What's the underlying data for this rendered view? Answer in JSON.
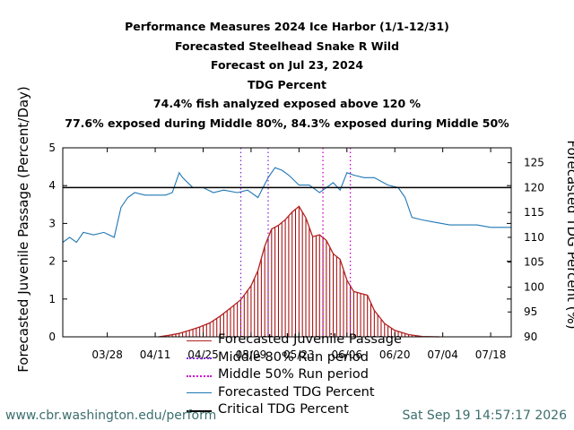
{
  "chart_data": {
    "type": "line",
    "title_lines": [
      "Performance Measures 2024 Ice Harbor (1/1-12/31)",
      "Forecasted Steelhead Snake R Wild",
      "Forecast on Jul 23, 2024",
      "TDG Percent",
      "74.4% fish analyzed exposed above 120 %",
      "77.6% exposed during Middle 80%, 84.3% exposed during Middle 50%"
    ],
    "ylabel_left": "Forecasted Juvenile Passage (Percent/Day)",
    "ylabel_right": "Forecasted TDG Percent (%)",
    "ylim_left": [
      0,
      5
    ],
    "ylim_right": [
      90,
      128
    ],
    "yticks_left": [
      "0",
      "1",
      "2",
      "3",
      "4",
      "5"
    ],
    "yticks_right": [
      "90",
      "95",
      "100",
      "105",
      "110",
      "115",
      "120",
      "125"
    ],
    "x_start": "03/15",
    "x_end": "07/24",
    "x_ticks": [
      "03/28",
      "04/11",
      "04/25",
      "05/09",
      "05/23",
      "06/06",
      "06/20",
      "07/04",
      "07/18"
    ],
    "critical_tdg": 120,
    "middle80_dates": [
      "05/06",
      "05/14"
    ],
    "middle50_dates": [
      "05/30",
      "06/07"
    ],
    "passage": {
      "x": [
        "04/12",
        "04/15",
        "04/18",
        "04/21",
        "04/24",
        "04/27",
        "04/30",
        "05/03",
        "05/06",
        "05/09",
        "05/11",
        "05/13",
        "05/15",
        "05/17",
        "05/19",
        "05/21",
        "05/23",
        "05/25",
        "05/27",
        "05/29",
        "05/31",
        "06/02",
        "06/04",
        "06/06",
        "06/08",
        "06/10",
        "06/12",
        "06/14",
        "06/17",
        "06/20",
        "06/24",
        "06/28",
        "07/03"
      ],
      "y": [
        0.0,
        0.04,
        0.09,
        0.17,
        0.26,
        0.37,
        0.55,
        0.76,
        0.98,
        1.35,
        1.75,
        2.4,
        2.85,
        2.95,
        3.1,
        3.3,
        3.45,
        3.15,
        2.65,
        2.7,
        2.55,
        2.2,
        2.05,
        1.5,
        1.2,
        1.15,
        1.1,
        0.7,
        0.35,
        0.17,
        0.06,
        0.01,
        0.0
      ]
    },
    "tdg": {
      "x": [
        "03/15",
        "03/17",
        "03/19",
        "03/21",
        "03/24",
        "03/27",
        "03/30",
        "04/01",
        "04/03",
        "04/05",
        "04/08",
        "04/11",
        "04/14",
        "04/16",
        "04/18",
        "04/19",
        "04/22",
        "04/25",
        "04/28",
        "05/01",
        "05/05",
        "05/08",
        "05/11",
        "05/14",
        "05/16",
        "05/18",
        "05/20",
        "05/23",
        "05/26",
        "05/29",
        "05/31",
        "06/02",
        "06/04",
        "06/06",
        "06/08",
        "06/11",
        "06/14",
        "06/18",
        "06/21",
        "06/23",
        "06/25",
        "06/28",
        "07/02",
        "07/06",
        "07/10",
        "07/14",
        "07/18",
        "07/22",
        "07/24"
      ],
      "y": [
        109,
        110,
        109,
        111,
        110.5,
        111,
        110,
        116,
        118,
        119,
        118.5,
        118.5,
        118.5,
        119,
        123,
        122,
        120,
        120,
        119,
        119.5,
        119,
        119.5,
        118,
        122,
        124,
        123.5,
        122.5,
        120.5,
        120.5,
        119,
        120,
        121,
        119.5,
        123,
        122.5,
        122,
        122,
        120.5,
        120,
        118,
        114,
        113.5,
        113,
        112.5,
        112.5,
        112.5,
        112,
        112,
        112
      ]
    },
    "legend": [
      {
        "label": "Forecasted Juvenile Passage",
        "color": "#b22222"
      },
      {
        "label": "Middle 80% Run period",
        "color": "#8a2be2"
      },
      {
        "label": "Middle 50% Run period",
        "color": "#cc00cc"
      },
      {
        "label": "Forecasted TDG Percent",
        "color": "#1f77b4"
      },
      {
        "label": "Critical TDG Percent",
        "color": "#000000"
      }
    ]
  },
  "footer": {
    "url": "www.cbr.washington.edu/perform",
    "timestamp": "Sat Sep 19 14:57:17 2026"
  }
}
